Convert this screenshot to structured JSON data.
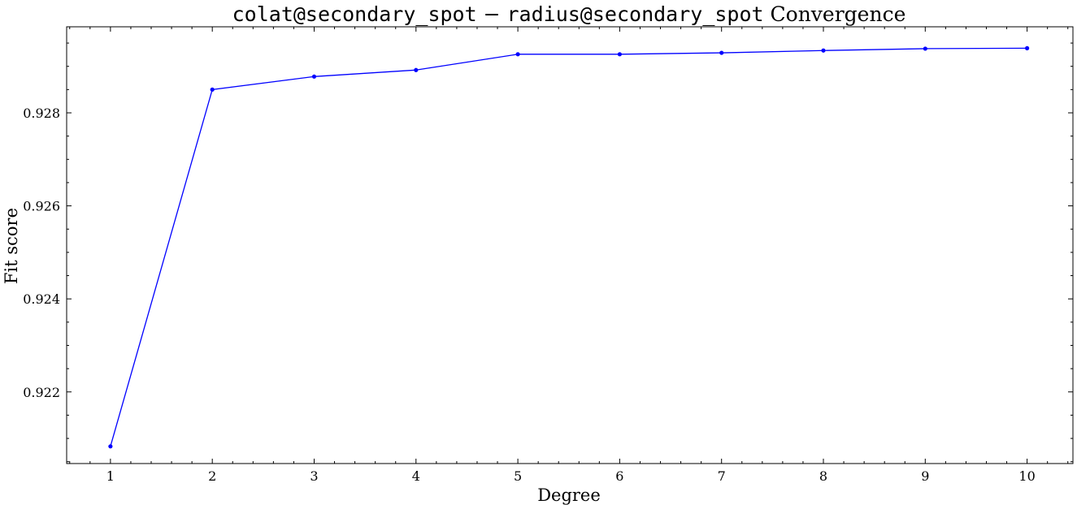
{
  "chart_data": {
    "type": "line",
    "title": {
      "part1": "colat@secondary_spot",
      "separator": " − ",
      "part2": "radius@secondary_spot",
      "part3": " Convergence"
    },
    "xlabel": "Degree",
    "ylabel": "Fit score",
    "x": [
      1,
      2,
      3,
      4,
      5,
      6,
      7,
      8,
      9,
      10
    ],
    "series": [
      {
        "values": [
          0.92083,
          0.9285,
          0.92878,
          0.92892,
          0.92926,
          0.92926,
          0.92929,
          0.92934,
          0.92938,
          0.92939
        ]
      }
    ],
    "xticks": [
      "1",
      "2",
      "3",
      "4",
      "5",
      "6",
      "7",
      "8",
      "9",
      "10"
    ],
    "yticks": [
      "0.922",
      "0.924",
      "0.926",
      "0.928"
    ],
    "ytick_values": [
      0.922,
      0.924,
      0.926,
      0.928
    ],
    "xlim": [
      0.57,
      10.45
    ],
    "ylim": [
      0.92046,
      0.92985
    ],
    "grid": false,
    "line_color": "#0000ff",
    "axis_color": "#000000"
  }
}
